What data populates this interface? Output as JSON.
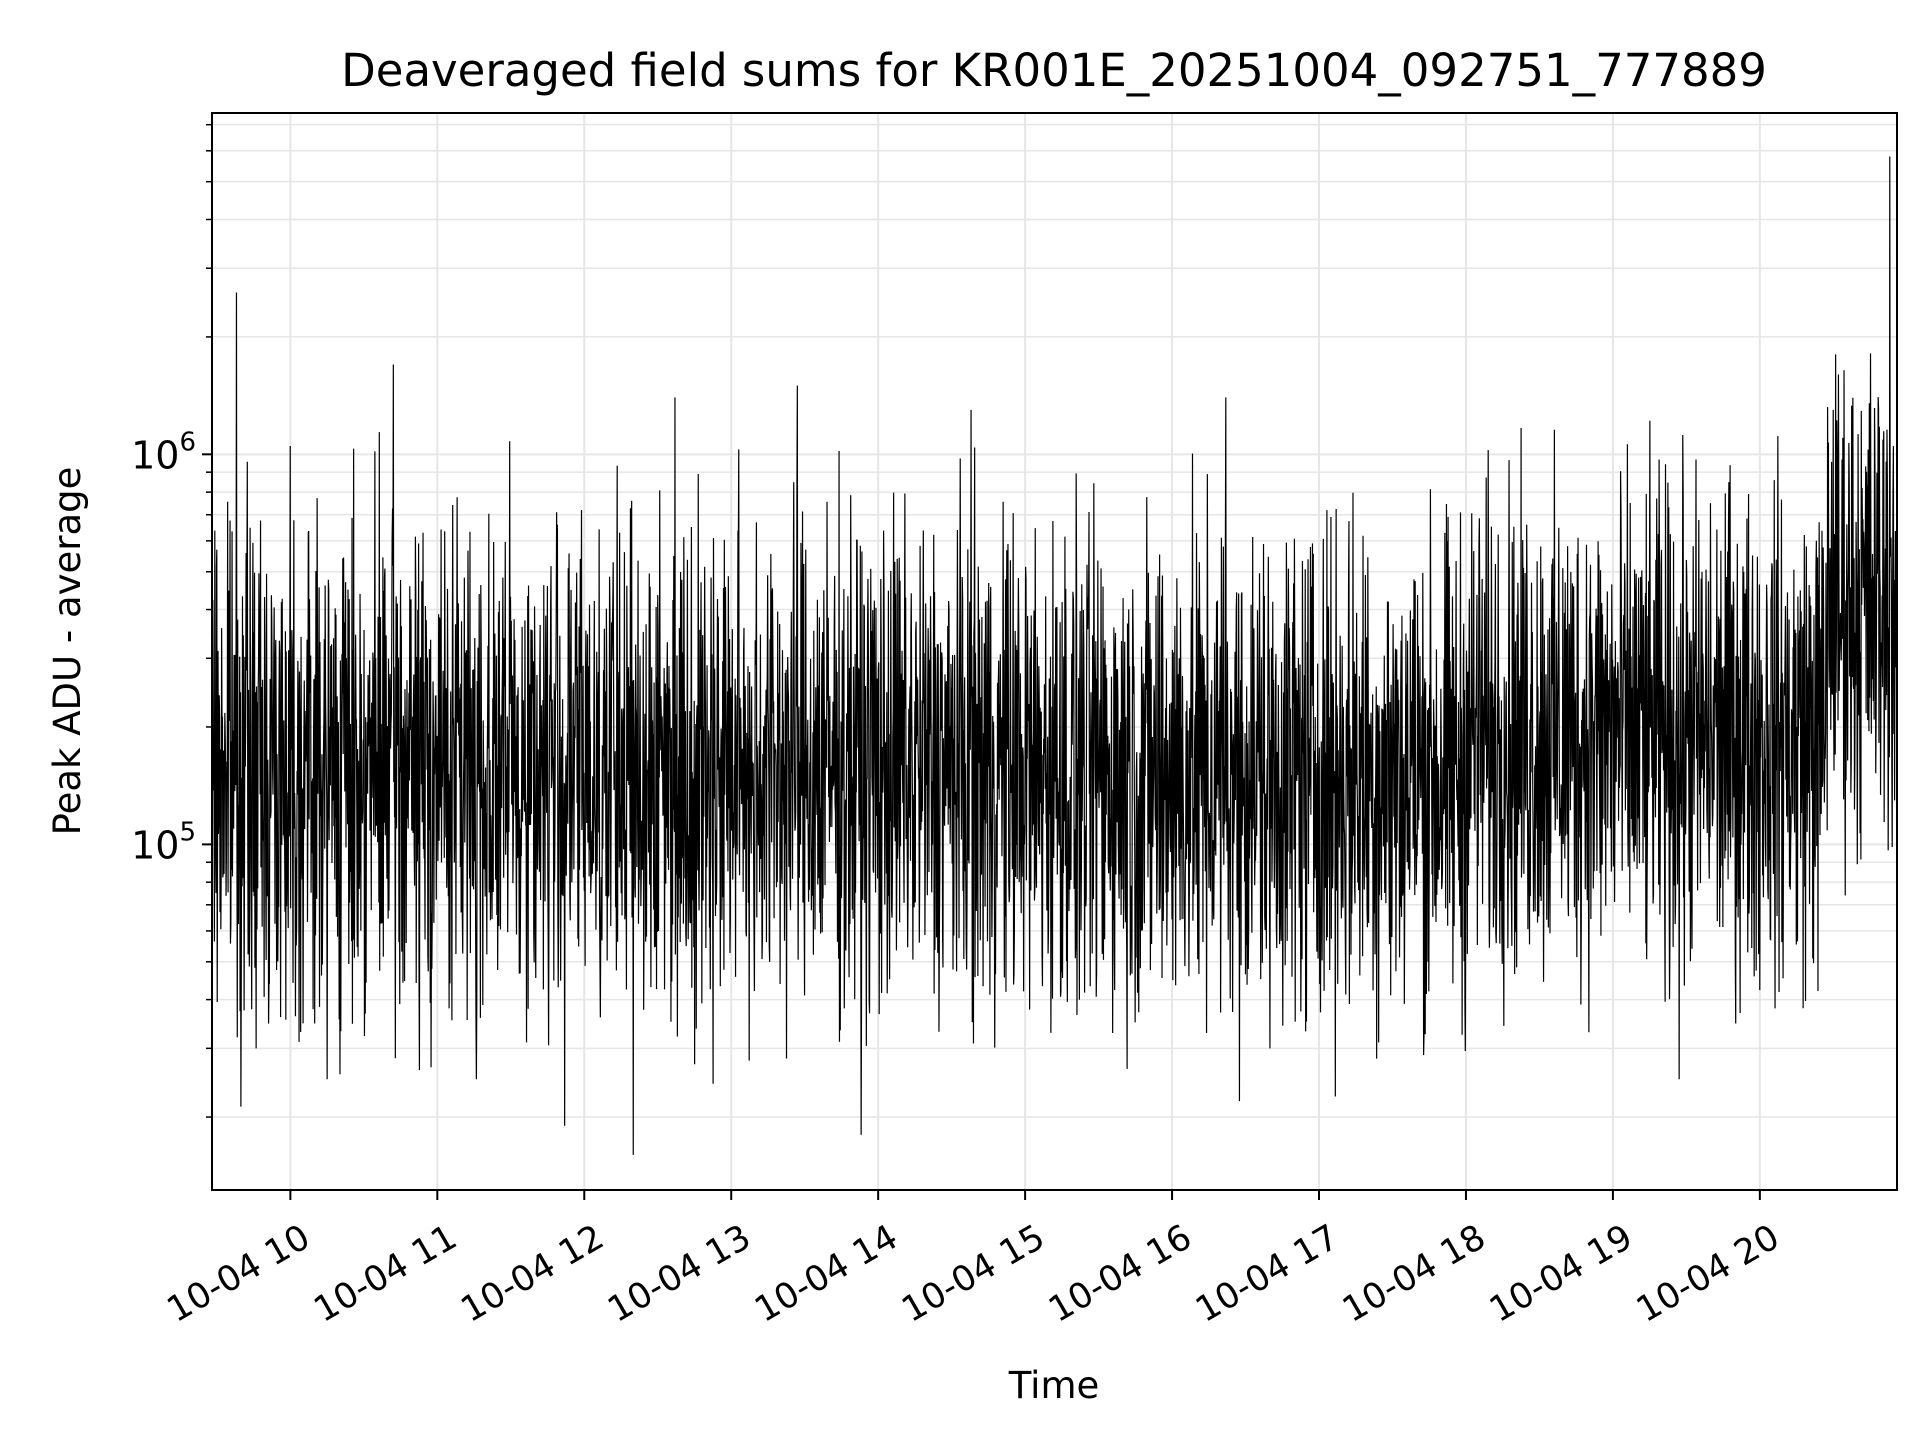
{
  "chart_data": {
    "type": "line",
    "title": "Deaveraged field sums for KR001E_20251004_092751_777889",
    "xlabel": "Time",
    "ylabel": "Peak ADU - average",
    "yscale": "log",
    "ylim": [
      13000,
      7500000
    ],
    "xlim": [
      "2025-10-04 09:28",
      "2025-10-04 20:56"
    ],
    "grid": true,
    "line_color": "#000000",
    "grid_color": "#e6e6e6",
    "x_ticks": [
      "10-04 10",
      "10-04 11",
      "10-04 12",
      "10-04 13",
      "10-04 14",
      "10-04 15",
      "10-04 16",
      "10-04 17",
      "10-04 18",
      "10-04 19",
      "10-04 20"
    ],
    "y_ticks": [
      {
        "base": "10",
        "exp": "5",
        "value": 100000
      },
      {
        "base": "10",
        "exp": "6",
        "value": 1000000
      }
    ],
    "series": [
      {
        "values": [
          {
            "x": "2025-10-04 09:28",
            "y": 300000
          },
          {
            "x": "2025-10-04 09:33",
            "y": 150000
          },
          {
            "x": "2025-10-04 09:38",
            "y": 2600000
          },
          {
            "x": "2025-10-04 09:46",
            "y": 30000
          },
          {
            "x": "2025-10-04 10:00",
            "y": 1050000
          },
          {
            "x": "2025-10-04 10:15",
            "y": 25000
          },
          {
            "x": "2025-10-04 10:42",
            "y": 1700000
          },
          {
            "x": "2025-10-04 11:16",
            "y": 25000
          },
          {
            "x": "2025-10-04 11:52",
            "y": 19000
          },
          {
            "x": "2025-10-04 12:20",
            "y": 16000
          },
          {
            "x": "2025-10-04 12:37",
            "y": 1400000
          },
          {
            "x": "2025-10-04 13:27",
            "y": 1500000
          },
          {
            "x": "2025-10-04 13:53",
            "y": 18000
          },
          {
            "x": "2025-10-04 14:38",
            "y": 1300000
          },
          {
            "x": "2025-10-04 15:00",
            "y": 200000
          },
          {
            "x": "2025-10-04 15:30",
            "y": 150000
          },
          {
            "x": "2025-10-04 16:22",
            "y": 1400000
          },
          {
            "x": "2025-10-04 16:40",
            "y": 30000
          },
          {
            "x": "2025-10-04 17:00",
            "y": 150000
          },
          {
            "x": "2025-10-04 17:30",
            "y": 140000
          },
          {
            "x": "2025-10-04 18:00",
            "y": 180000
          },
          {
            "x": "2025-10-04 18:30",
            "y": 200000
          },
          {
            "x": "2025-10-04 19:00",
            "y": 200000
          },
          {
            "x": "2025-10-04 19:27",
            "y": 25000
          },
          {
            "x": "2025-10-04 19:45",
            "y": 250000
          },
          {
            "x": "2025-10-04 20:15",
            "y": 200000
          },
          {
            "x": "2025-10-04 20:30",
            "y": 1300000
          },
          {
            "x": "2025-10-04 20:45",
            "y": 550000
          },
          {
            "x": "2025-10-04 20:53",
            "y": 5800000
          },
          {
            "x": "2025-10-04 20:56",
            "y": 400000
          }
        ]
      }
    ]
  }
}
